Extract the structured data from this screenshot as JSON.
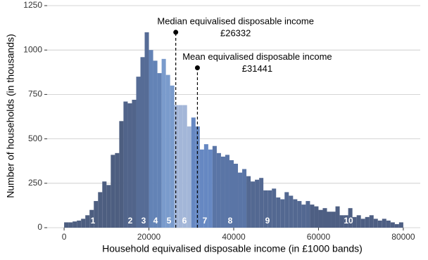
{
  "chart_data": {
    "type": "histogram",
    "x_label": "Household equivalised disposable income (in £1000 bands)",
    "y_label": "Number of households (in thousands)",
    "bins": [
      0,
      1000,
      2000,
      3000,
      4000,
      5000,
      6000,
      7000,
      8000,
      9000,
      10000,
      11000,
      12000,
      13000,
      14000,
      15000,
      16000,
      17000,
      18000,
      19000,
      20000,
      21000,
      22000,
      23000,
      24000,
      25000,
      26000,
      27000,
      28000,
      29000,
      30000,
      31000,
      32000,
      33000,
      34000,
      35000,
      36000,
      37000,
      38000,
      39000,
      40000,
      41000,
      42000,
      43000,
      44000,
      45000,
      46000,
      47000,
      48000,
      49000,
      50000,
      51000,
      52000,
      53000,
      54000,
      55000,
      56000,
      57000,
      58000,
      59000,
      60000,
      61000,
      62000,
      63000,
      64000,
      65000,
      66000,
      67000,
      68000,
      69000,
      70000,
      71000,
      72000,
      73000,
      74000,
      75000,
      76000,
      77000,
      78000,
      79000,
      80000
    ],
    "values": [
      30,
      30,
      35,
      40,
      50,
      70,
      100,
      150,
      200,
      260,
      240,
      410,
      420,
      600,
      710,
      700,
      720,
      850,
      960,
      1100,
      1000,
      940,
      870,
      950,
      860,
      800,
      690,
      690,
      690,
      570,
      620,
      570,
      440,
      470,
      440,
      460,
      420,
      400,
      410,
      380,
      360,
      310,
      330,
      290,
      260,
      270,
      280,
      210,
      210,
      220,
      170,
      160,
      200,
      180,
      160,
      150,
      130,
      150,
      130,
      120,
      100,
      110,
      90,
      90,
      120,
      70,
      70,
      110,
      60,
      70,
      50,
      60,
      70,
      50,
      40,
      50,
      40,
      30,
      20,
      30
    ],
    "colors": [
      "#4d5e80",
      "#4d5e80",
      "#4d5e80",
      "#4d5e80",
      "#4d5e80",
      "#4d5e80",
      "#4d5e80",
      "#4d5e80",
      "#4d5e80",
      "#4d5e80",
      "#4d5e80",
      "#4d5e80",
      "#4d5e80",
      "#4d5e80",
      "#51648a",
      "#51648a",
      "#51648a",
      "#566c96",
      "#566c96",
      "#566c96",
      "#6383b6",
      "#6383b6",
      "#6383b6",
      "#7a9bcc",
      "#7a9bcc",
      "#7a9bcc",
      "#a3b6d8",
      "#a3b6d8",
      "#a3b6d8",
      "#a3b6d8",
      "#6688c2",
      "#6688c2",
      "#6688c2",
      "#6688c2",
      "#6688c2",
      "#5a75a6",
      "#5a75a6",
      "#5a75a6",
      "#5a75a6",
      "#5a75a6",
      "#5a75a6",
      "#5a75a6",
      "#5a75a6",
      "#536891",
      "#536891",
      "#536891",
      "#536891",
      "#536891",
      "#536891",
      "#536891",
      "#536891",
      "#536891",
      "#536891",
      "#536891",
      "#536891",
      "#536891",
      "#536891",
      "#536891",
      "#4e5f83",
      "#4e5f83",
      "#4e5f83",
      "#4e5f83",
      "#4e5f83",
      "#4e5f83",
      "#4e5f83",
      "#4e5f83",
      "#4e5f83",
      "#4e5f83",
      "#4e5f83",
      "#4e5f83",
      "#4e5f83",
      "#4e5f83",
      "#4e5f83",
      "#4e5f83",
      "#4e5f83",
      "#4e5f83",
      "#4e5f83",
      "#4e5f83",
      "#4e5f83",
      "#4e5f83"
    ],
    "decile_labels": [
      "1",
      "2",
      "3",
      "4",
      "5",
      "6",
      "7",
      "8",
      "9",
      "10"
    ],
    "annotations": [
      {
        "text": "Median equivalised disposable income",
        "x": 26332,
        "label": "£26332",
        "y": 1100
      },
      {
        "text": "Mean equivalised disposable income",
        "x": 31441,
        "label": "£31441",
        "y": 900
      }
    ],
    "xlim": [
      -4000,
      84000
    ],
    "ylim": [
      0,
      1250
    ],
    "xticks": [
      0,
      20000,
      40000,
      60000,
      80000
    ],
    "yticks": [
      0,
      250,
      500,
      750,
      1000,
      1250
    ],
    "grid": true
  }
}
